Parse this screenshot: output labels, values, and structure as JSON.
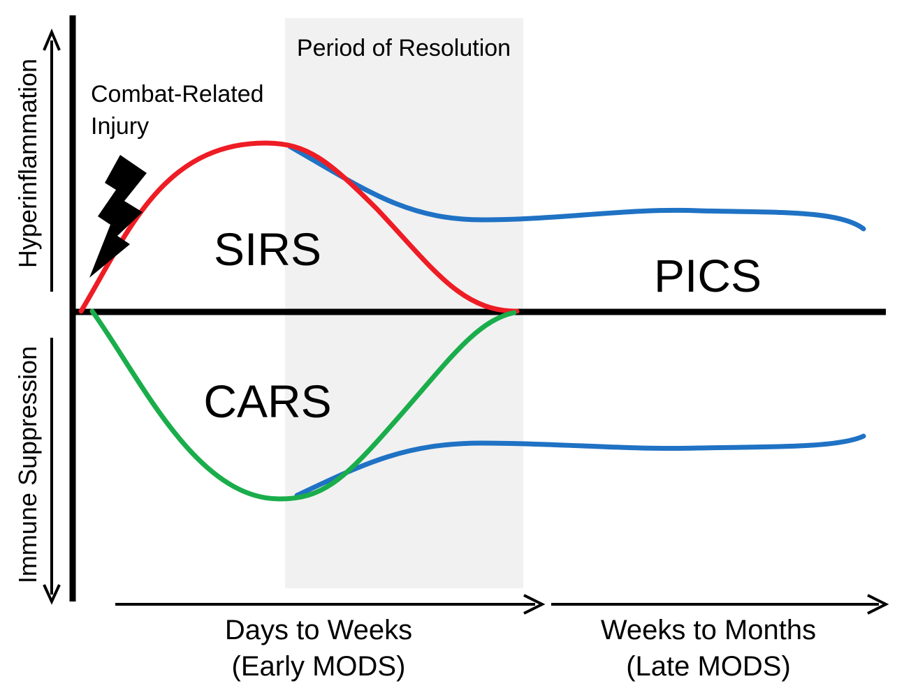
{
  "diagram": {
    "resolution_label": "Period of Resolution",
    "injury_label_line1": "Combat-Related",
    "injury_label_line2": "Injury",
    "y_axis_upper_label": "Hyperinflammation",
    "y_axis_lower_label": "Immune Suppression",
    "sirs_label": "SIRS",
    "cars_label": "CARS",
    "pics_label": "PICS",
    "early_phase_line1": "Days to Weeks",
    "early_phase_line2": "(Early MODS)",
    "late_phase_line1": "Weeks to Months",
    "late_phase_line2": "(Late MODS)"
  },
  "icons": {
    "injury_icon": "lightning-bolt-icon"
  },
  "colors": {
    "sirs_curve": "#ee1c24",
    "cars_curve": "#1aad4b",
    "pics_curve": "#1f72c4",
    "resolution_band": "#f1f1f1",
    "axis": "#000000"
  }
}
